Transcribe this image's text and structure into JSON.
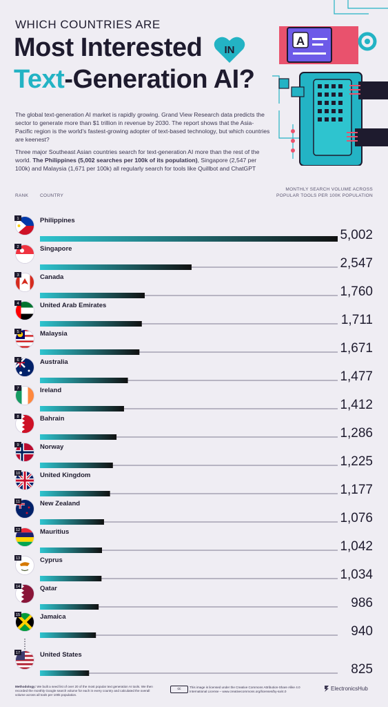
{
  "header": {
    "kicker": "WHICH COUNTRIES ARE",
    "title_line1": "Most Interested",
    "badge": "IN",
    "title_highlight": "Text",
    "title_rest": "-Generation AI?"
  },
  "intro": {
    "p1": "The global text-generation AI market is rapidly growing. Grand View Research data predicts the sector to generate more than $1 trillion in revenue by 2030. The report shows that the Asia-Pacific region is the world's fastest-growing adopter of text-based technology, but which countries are keenest?",
    "p2_start": "Three major Southeast Asian countries search for text-generation AI more than the rest of the world. ",
    "p2_bold": "The Philippines (5,002 searches per 100k of its population)",
    "p2_end": ", Singapore (2,547 per 100k) and Malaysia (1,671 per 100k) all regularly search for tools like Quillbot and ChatGPT"
  },
  "columns": {
    "rank": "RANK",
    "country": "COUNTRY",
    "volume": "MONTHLY SEARCH VOLUME ACROSS POPULAR TOOLS PER 100K POPULATION"
  },
  "colors": {
    "bar_start": "#2ec4cf",
    "bar_end": "#111111",
    "accent": "#23b3c4",
    "text": "#1e1b2e"
  },
  "chart_data": {
    "type": "bar",
    "orientation": "horizontal",
    "xlim": [
      0,
      5002
    ],
    "rows": [
      {
        "rank": "1",
        "country": "Philippines",
        "value": 5002,
        "label": "5,002",
        "flag": "philippines-flag"
      },
      {
        "rank": "2",
        "country": "Singapore",
        "value": 2547,
        "label": "2,547",
        "flag": "singapore-flag"
      },
      {
        "rank": "3",
        "country": "Canada",
        "value": 1760,
        "label": "1,760",
        "flag": "canada-flag"
      },
      {
        "rank": "4",
        "country": "United Arab Emirates",
        "value": 1711,
        "label": "1,711",
        "flag": "uae-flag"
      },
      {
        "rank": "5",
        "country": "Malaysia",
        "value": 1671,
        "label": "1,671",
        "flag": "malaysia-flag"
      },
      {
        "rank": "6",
        "country": "Australia",
        "value": 1477,
        "label": "1,477",
        "flag": "australia-flag"
      },
      {
        "rank": "7",
        "country": "Ireland",
        "value": 1412,
        "label": "1,412",
        "flag": "ireland-flag"
      },
      {
        "rank": "8",
        "country": "Bahrain",
        "value": 1286,
        "label": "1,286",
        "flag": "bahrain-flag"
      },
      {
        "rank": "9",
        "country": "Norway",
        "value": 1225,
        "label": "1,225",
        "flag": "norway-flag"
      },
      {
        "rank": "10",
        "country": "United Kingdom",
        "value": 1177,
        "label": "1,177",
        "flag": "uk-flag"
      },
      {
        "rank": "11",
        "country": "New Zealand",
        "value": 1076,
        "label": "1,076",
        "flag": "new-zealand-flag"
      },
      {
        "rank": "12",
        "country": "Mauritius",
        "value": 1042,
        "label": "1,042",
        "flag": "mauritius-flag"
      },
      {
        "rank": "13",
        "country": "Cyprus",
        "value": 1034,
        "label": "1,034",
        "flag": "cyprus-flag"
      },
      {
        "rank": "14",
        "country": "Qatar",
        "value": 986,
        "label": "986",
        "flag": "qatar-flag"
      },
      {
        "rank": "15",
        "country": "Jamaica",
        "value": 940,
        "label": "940",
        "flag": "jamaica-flag"
      },
      {
        "rank": "17",
        "country": "United States",
        "value": 825,
        "label": "825",
        "flag": "usa-flag"
      }
    ]
  },
  "footer": {
    "methodology_label": "Methodology:",
    "methodology_text": "We built a seed list of over 20 of the most popular text generation AI tools. We then recorded the monthly Google search volume for each in every country and calculated the overall volume across all tools per 100k population.",
    "cc_icon": "cc-by-sa",
    "license": "This image is licensed under the Creative Commons Attribution-Share Alike 4.0 International License – www.creativecommons.org/licenses/by-sa/4.0",
    "brand": "ElectronicsHub"
  }
}
